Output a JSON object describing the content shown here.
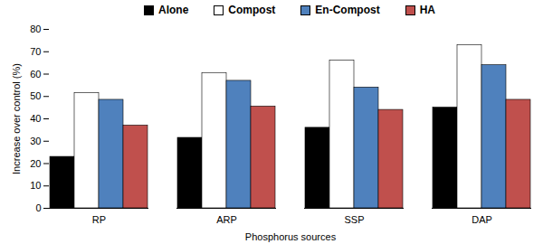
{
  "chart_data": {
    "type": "bar",
    "categories": [
      "RP",
      "ARP",
      "SSP",
      "DAP"
    ],
    "series": [
      {
        "name": "Alone",
        "color": "#000000",
        "values": [
          23,
          31.5,
          36,
          45
        ]
      },
      {
        "name": "Compost",
        "color": "#ffffff",
        "values": [
          51.5,
          60.5,
          66,
          73
        ]
      },
      {
        "name": "En-Compost",
        "color": "#4f81bd",
        "values": [
          48.5,
          57,
          54,
          64
        ]
      },
      {
        "name": "HA",
        "color": "#c0504d",
        "values": [
          37,
          45.5,
          44,
          48.5
        ]
      }
    ],
    "x_label": "Phosphorus sources",
    "y_label": "Increase over control (%)",
    "ylim": [
      0,
      80
    ],
    "yticks": [
      0,
      10,
      20,
      30,
      40,
      50,
      60,
      70,
      80
    ],
    "legend": "top"
  }
}
